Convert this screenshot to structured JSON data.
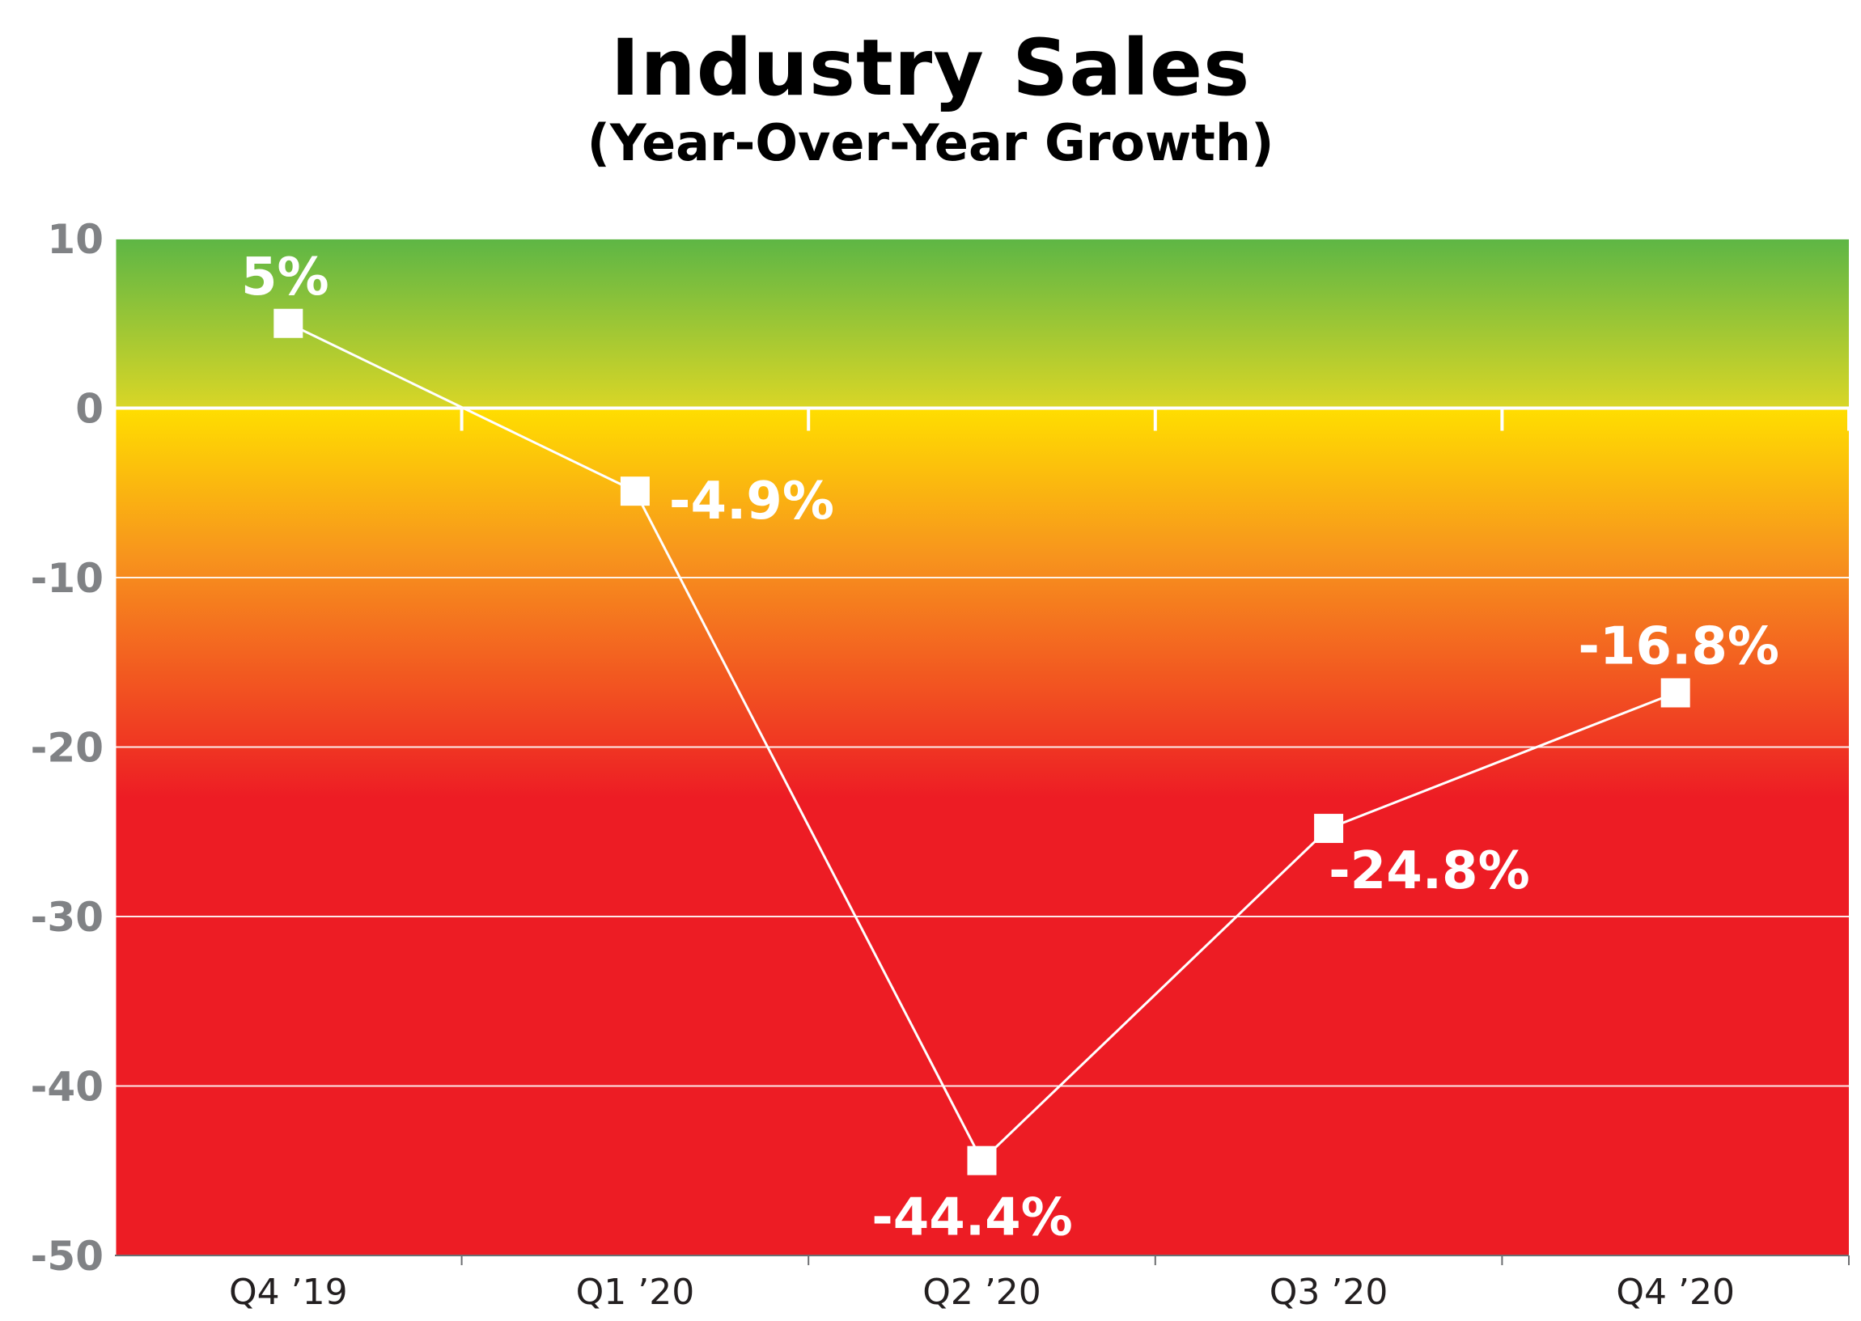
{
  "chart_data": {
    "type": "line",
    "title": "Industry Sales",
    "subtitle": "(Year-Over-Year Growth)",
    "xlabel": "",
    "ylabel": "",
    "categories": [
      "Q4 ’19",
      "Q1 ’20",
      "Q2 ’20",
      "Q3 ’20",
      "Q4 ’20"
    ],
    "series": [
      {
        "values": [
          5,
          -4.9,
          -44.4,
          -24.8,
          -16.8
        ]
      }
    ],
    "data_labels": [
      "5%",
      "-4.9%",
      "-44.4%",
      "-24.8%",
      "-16.8%"
    ],
    "y_ticks": [
      10,
      0,
      -10,
      -20,
      -30,
      -40,
      -50
    ],
    "ylim": [
      -50,
      10
    ],
    "grid": true,
    "legend": "none",
    "colors": {
      "line": "#ffffff",
      "marker": "#ffffff",
      "green": "#5db645",
      "yellow": "#ffde00",
      "orange": "#f7941d",
      "red": "#ed1c24",
      "tick_text": "#808285"
    }
  }
}
